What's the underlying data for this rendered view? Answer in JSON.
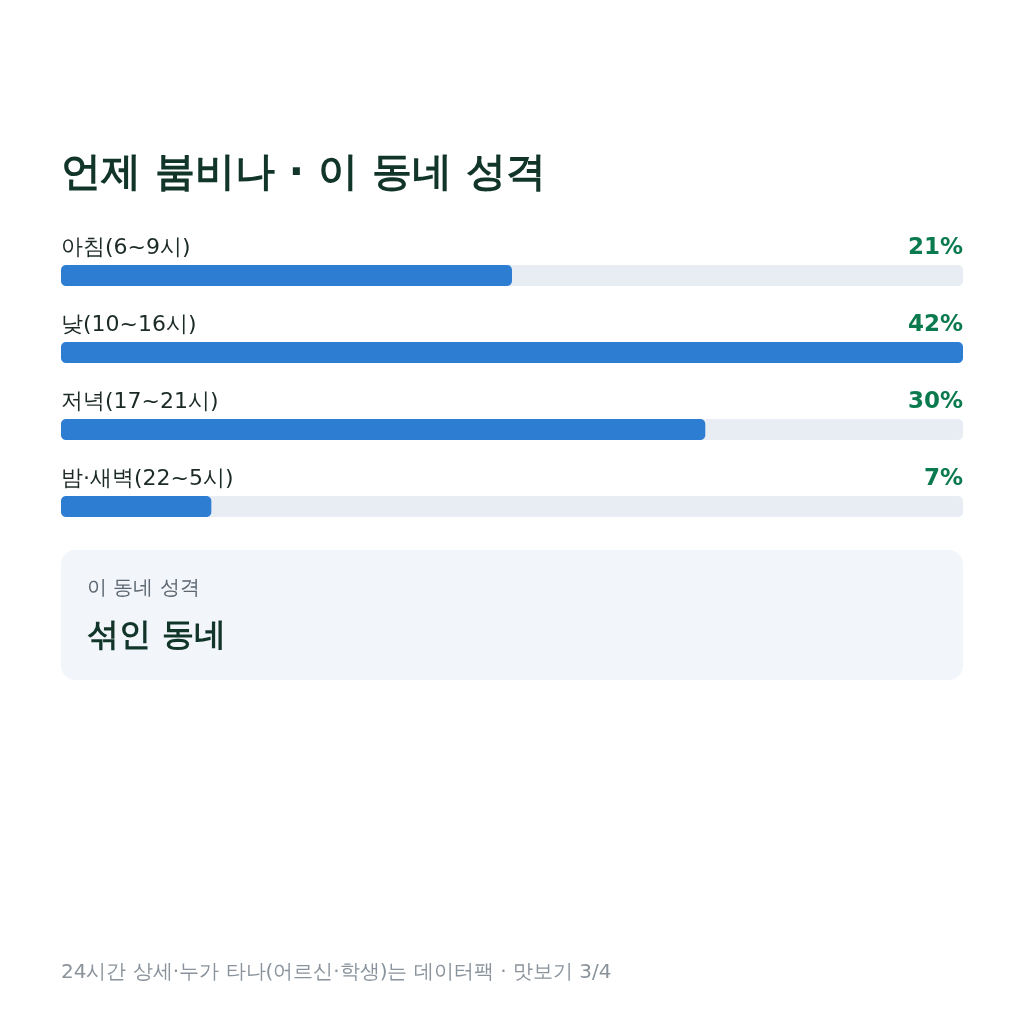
{
  "chart_data": [
    {
      "type": "bar",
      "orientation": "horizontal",
      "title": "언제 붐비나 · 이 동네 성격",
      "categories": [
        "아침(6~9시)",
        "낮(10~16시)",
        "저녁(17~21시)",
        "밤·새벽(22~5시)"
      ],
      "values": [
        21,
        42,
        30,
        7
      ],
      "value_labels": [
        "21%",
        "42%",
        "30%",
        "7%"
      ],
      "color": "#2d7dd3",
      "xlim": [
        0,
        42
      ],
      "bands": [
        {
          "axis": "x",
          "from": 0,
          "to": 42,
          "color": "#e8edf4"
        }
      ],
      "annotations": [
        "24시간 상세·누가 타나(어르신·학생)는 데이터팩 · 맛보기 3/4"
      ]
    },
    {
      "type": "other",
      "title": "이 동네 성격",
      "annotations": [
        "섞인 동네"
      ]
    }
  ]
}
